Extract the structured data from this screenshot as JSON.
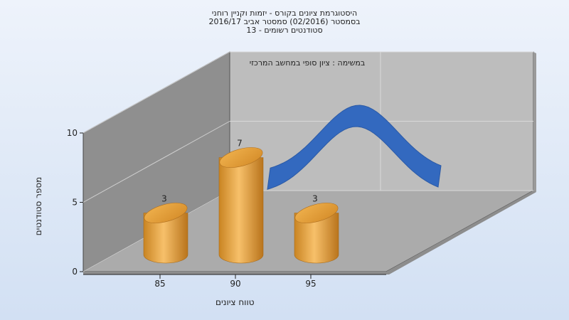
{
  "chart_data": {
    "type": "bar",
    "title_lines": [
      "היסטוגרמת ציונים בקורס - יזמות וקניין רוחני",
      "בסמסטר  (02/2016)  סמסטר אביב 2016/17",
      "סטודנטים רשומים - 13"
    ],
    "task_label": "במשימה : ציון סופי במחשב המרכזי",
    "xlabel": "טווח ציונים",
    "ylabel": "מספר סטודנטים",
    "y_ticks": [
      0,
      5,
      10
    ],
    "ylim": [
      0,
      10
    ],
    "x_ticks": [
      85,
      90,
      95
    ],
    "bars": [
      {
        "x": 85,
        "value": 3,
        "label": "3"
      },
      {
        "x": 90,
        "value": 7,
        "label": "7"
      },
      {
        "x": 95,
        "value": 3,
        "label": "3"
      }
    ],
    "curve": "normal-distribution",
    "colors": {
      "bar": "#e8a23a",
      "curve": "#3269bd",
      "back_wall": "#b9b9b9",
      "side_wall": "#8c8c8c",
      "floor": "#a9a9a9"
    }
  }
}
